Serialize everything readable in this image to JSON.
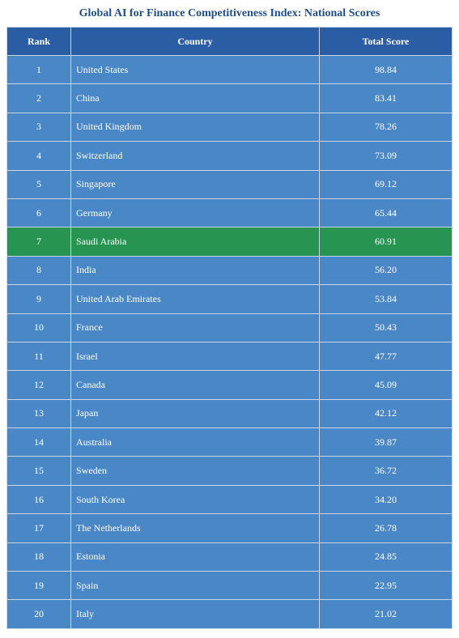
{
  "chart_data": {
    "type": "table",
    "title": "Global AI for Finance Competitiveness Index: National Scores",
    "columns": [
      "Rank",
      "Country",
      "Total Score"
    ],
    "highlight_country": "Saudi Arabia",
    "colors": {
      "title": "#1f4e8c",
      "header": "#2a5da4",
      "row": "#4a87c6",
      "highlight": "#279452",
      "grid": "#c9d7ea"
    },
    "rows": [
      {
        "rank": "1",
        "country": "United States",
        "score": "98.84"
      },
      {
        "rank": "2",
        "country": "China",
        "score": "83.41"
      },
      {
        "rank": "3",
        "country": "United Kingdom",
        "score": "78.26"
      },
      {
        "rank": "4",
        "country": "Switzerland",
        "score": "73.09"
      },
      {
        "rank": "5",
        "country": "Singapore",
        "score": "69.12"
      },
      {
        "rank": "6",
        "country": "Germany",
        "score": "65.44"
      },
      {
        "rank": "7",
        "country": "Saudi Arabia",
        "score": "60.91"
      },
      {
        "rank": "8",
        "country": "India",
        "score": "56.20"
      },
      {
        "rank": "9",
        "country": "United Arab Emirates",
        "score": "53.84"
      },
      {
        "rank": "10",
        "country": "France",
        "score": "50.43"
      },
      {
        "rank": "11",
        "country": "Israel",
        "score": "47.77"
      },
      {
        "rank": "12",
        "country": "Canada",
        "score": "45.09"
      },
      {
        "rank": "13",
        "country": "Japan",
        "score": "42.12"
      },
      {
        "rank": "14",
        "country": "Australia",
        "score": "39.87"
      },
      {
        "rank": "15",
        "country": "Sweden",
        "score": "36.72"
      },
      {
        "rank": "16",
        "country": "South Korea",
        "score": "34.20"
      },
      {
        "rank": "17",
        "country": "The Netherlands",
        "score": "26.78"
      },
      {
        "rank": "18",
        "country": "Estonia",
        "score": "24.85"
      },
      {
        "rank": "19",
        "country": "Spain",
        "score": "22.95"
      },
      {
        "rank": "20",
        "country": "Italy",
        "score": "21.02"
      }
    ]
  }
}
